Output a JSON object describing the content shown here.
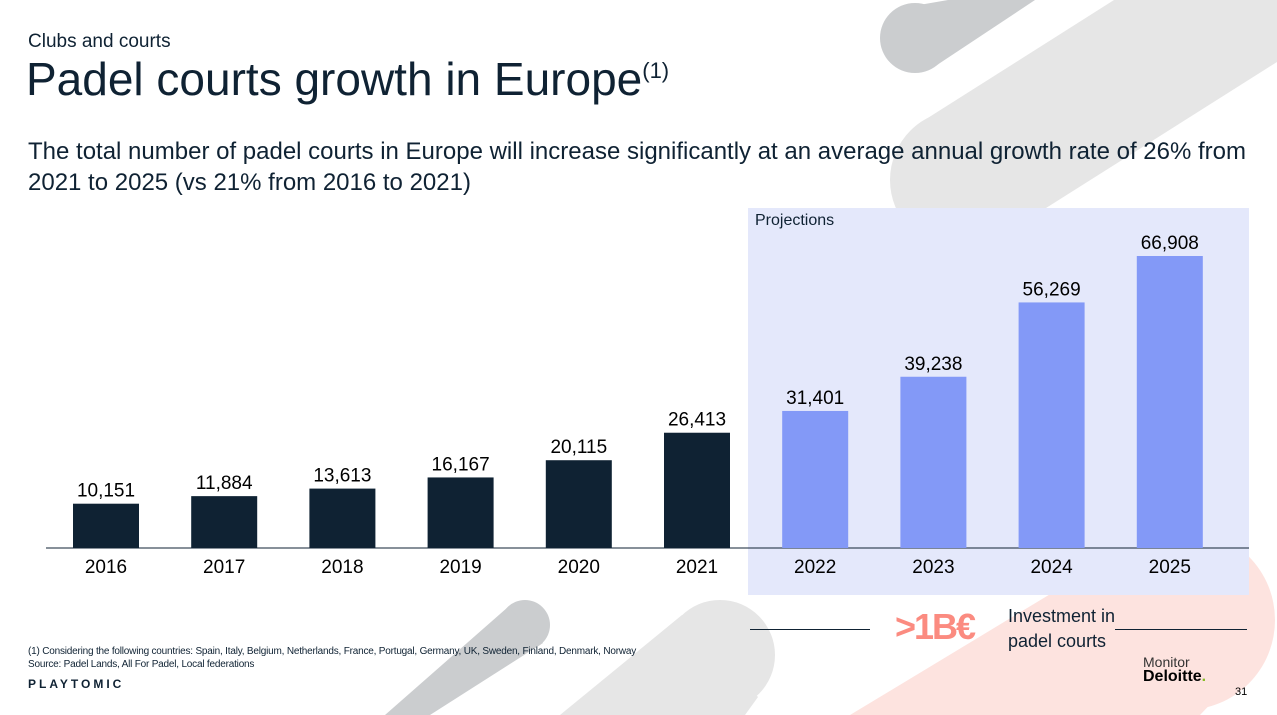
{
  "header": {
    "kicker": "Clubs and courts",
    "title": "Padel courts growth in Europe",
    "title_footnote_ref": "(1)",
    "subtitle": "The total number of padel courts in Europe will increase significantly at an average annual growth rate of 26% from 2021 to 2025 (vs 21% from 2016 to 2021)"
  },
  "chart_data": {
    "type": "bar",
    "categories": [
      "2016",
      "2017",
      "2018",
      "2019",
      "2020",
      "2021",
      "2022",
      "2023",
      "2024",
      "2025"
    ],
    "values": [
      10151,
      11884,
      13613,
      16167,
      20115,
      26413,
      31401,
      39238,
      56269,
      66908
    ],
    "data_labels": [
      "10,151",
      "11,884",
      "13,613",
      "16,167",
      "20,115",
      "26,413",
      "31,401",
      "39,238",
      "56,269",
      "66,908"
    ],
    "projected": [
      false,
      false,
      false,
      false,
      false,
      false,
      true,
      true,
      true,
      true
    ],
    "projection_label": "Projections",
    "ylim": [
      0,
      66908
    ],
    "grid": false,
    "colors": {
      "actual": "#0f2233",
      "projected": "#8399f7",
      "projection_band": "#e4e8fb"
    }
  },
  "investment": {
    "value": ">1B€",
    "label_line1": "Investment in",
    "label_line2": "padel courts",
    "color": "#fb8b80"
  },
  "footer": {
    "footnote": "(1) Considering the following countries: Spain, Italy, Belgium, Netherlands, France, Portugal, Germany, UK, Sweden, Finland, Denmark, Norway",
    "source": "Source: Padel Lands, All For Padel, Local federations",
    "brand": "PLAYTOMIC",
    "partner_line1": "Monitor",
    "partner_line2": "Deloitte",
    "partner_dot": ".",
    "page_number": "31"
  }
}
